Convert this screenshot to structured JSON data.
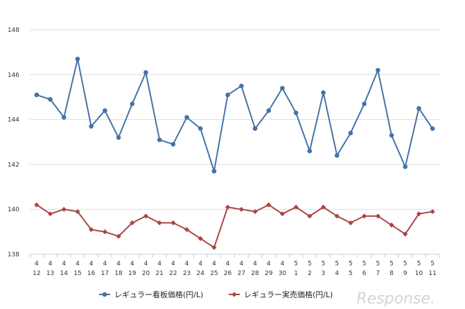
{
  "chart_data": {
    "type": "line",
    "categories": [
      [
        "4",
        "12"
      ],
      [
        "4",
        "13"
      ],
      [
        "4",
        "14"
      ],
      [
        "4",
        "15"
      ],
      [
        "4",
        "16"
      ],
      [
        "4",
        "17"
      ],
      [
        "4",
        "18"
      ],
      [
        "4",
        "19"
      ],
      [
        "4",
        "20"
      ],
      [
        "4",
        "21"
      ],
      [
        "4",
        "22"
      ],
      [
        "4",
        "23"
      ],
      [
        "4",
        "24"
      ],
      [
        "4",
        "25"
      ],
      [
        "4",
        "26"
      ],
      [
        "4",
        "27"
      ],
      [
        "4",
        "28"
      ],
      [
        "4",
        "29"
      ],
      [
        "4",
        "30"
      ],
      [
        "5",
        "1"
      ],
      [
        "5",
        "2"
      ],
      [
        "5",
        "3"
      ],
      [
        "5",
        "4"
      ],
      [
        "5",
        "5"
      ],
      [
        "5",
        "6"
      ],
      [
        "5",
        "7"
      ],
      [
        "5",
        "8"
      ],
      [
        "5",
        "9"
      ],
      [
        "5",
        "10"
      ],
      [
        "5",
        "11"
      ]
    ],
    "ylim": [
      138,
      148
    ],
    "yticks": [
      138,
      140,
      142,
      144,
      146,
      148
    ],
    "grid": true,
    "legend_position": "bottom",
    "series": [
      {
        "name": "レギュラー看板価格(円/L)",
        "color": "#4572a7",
        "marker": "circle",
        "values": [
          145.1,
          144.9,
          144.1,
          146.7,
          143.7,
          144.4,
          143.2,
          144.7,
          146.1,
          143.1,
          142.9,
          144.1,
          143.6,
          141.7,
          145.1,
          145.5,
          143.6,
          144.4,
          145.4,
          144.3,
          142.6,
          145.2,
          142.4,
          143.4,
          144.7,
          146.2,
          143.3,
          141.9,
          144.5,
          143.6
        ]
      },
      {
        "name": "レギュラー実売価格(円/L)",
        "color": "#aa4643",
        "marker": "diamond",
        "values": [
          140.2,
          139.8,
          140.0,
          139.9,
          139.1,
          139.0,
          138.8,
          139.4,
          139.7,
          139.4,
          139.4,
          139.1,
          138.7,
          138.3,
          140.1,
          140.0,
          139.9,
          140.2,
          139.8,
          140.1,
          139.7,
          140.1,
          139.7,
          139.4,
          139.7,
          139.7,
          139.3,
          138.9,
          139.8,
          139.9
        ]
      }
    ]
  },
  "watermark": "Response."
}
